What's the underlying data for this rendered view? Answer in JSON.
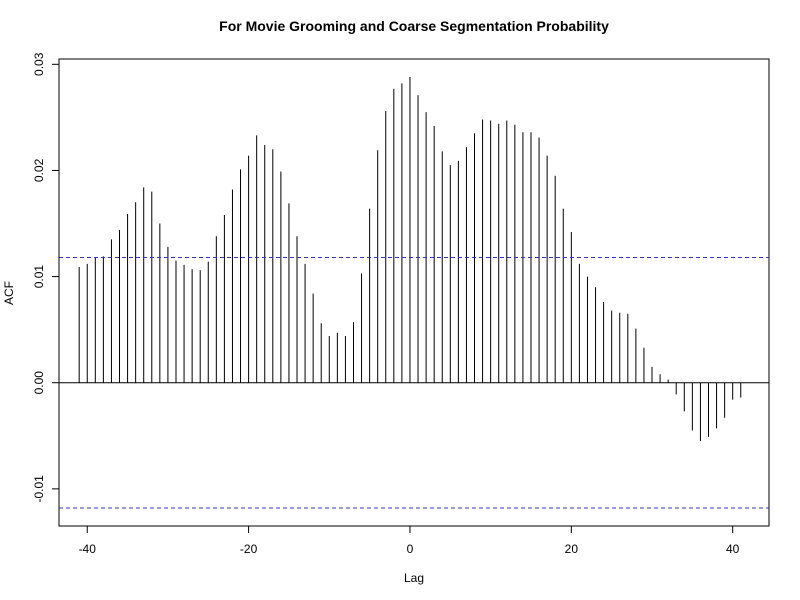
{
  "chart_data": {
    "type": "bar",
    "title": "For Movie Grooming and Coarse Segmentation Probability",
    "xlabel": "Lag",
    "ylabel": "ACF",
    "xlim": [
      -43.5,
      44.5
    ],
    "ylim": [
      -0.0135,
      0.0305
    ],
    "x_ticks": [
      -40,
      -20,
      0,
      20,
      40
    ],
    "x_tick_labels": [
      "-40",
      "-20",
      "0",
      "20",
      "40"
    ],
    "y_ticks": [
      -0.01,
      0.0,
      0.01,
      0.02,
      0.03
    ],
    "y_tick_labels": [
      "-0.01",
      "0.00",
      "0.01",
      "0.02",
      "0.03"
    ],
    "confidence_band": [
      0.0118,
      -0.0118
    ],
    "band_color": "#3333cc",
    "bar_color": "#000000",
    "grid": false,
    "lags": [
      -41,
      -40,
      -39,
      -38,
      -37,
      -36,
      -35,
      -34,
      -33,
      -32,
      -31,
      -30,
      -29,
      -28,
      -27,
      -26,
      -25,
      -24,
      -23,
      -22,
      -21,
      -20,
      -19,
      -18,
      -17,
      -16,
      -15,
      -14,
      -13,
      -12,
      -11,
      -10,
      -9,
      -8,
      -7,
      -6,
      -5,
      -4,
      -3,
      -2,
      -1,
      0,
      1,
      2,
      3,
      4,
      5,
      6,
      7,
      8,
      9,
      10,
      11,
      12,
      13,
      14,
      15,
      16,
      17,
      18,
      19,
      20,
      21,
      22,
      23,
      24,
      25,
      26,
      27,
      28,
      29,
      30,
      31,
      32,
      33,
      34,
      35,
      36,
      37,
      38,
      39,
      40,
      41
    ],
    "values": [
      0.0109,
      0.0112,
      0.0118,
      0.0119,
      0.0135,
      0.0144,
      0.0159,
      0.017,
      0.0184,
      0.018,
      0.015,
      0.0128,
      0.0115,
      0.0111,
      0.0107,
      0.0106,
      0.0114,
      0.0138,
      0.0158,
      0.0182,
      0.0201,
      0.0214,
      0.0233,
      0.0224,
      0.022,
      0.0199,
      0.0169,
      0.0138,
      0.0112,
      0.0084,
      0.0056,
      0.0044,
      0.0047,
      0.0044,
      0.0057,
      0.0103,
      0.0164,
      0.0219,
      0.0256,
      0.0277,
      0.0282,
      0.0288,
      0.0271,
      0.0255,
      0.0242,
      0.0218,
      0.0205,
      0.0209,
      0.0222,
      0.0235,
      0.0248,
      0.0247,
      0.0244,
      0.0247,
      0.0243,
      0.0236,
      0.0236,
      0.0231,
      0.0214,
      0.0195,
      0.0164,
      0.0142,
      0.0112,
      0.01,
      0.009,
      0.0076,
      0.0068,
      0.0066,
      0.0065,
      0.0051,
      0.0033,
      0.0015,
      0.0008,
      0.0003,
      -0.0011,
      -0.0027,
      -0.0045,
      -0.0055,
      -0.0051,
      -0.0043,
      -0.0033,
      -0.0016,
      -0.0014
    ]
  }
}
